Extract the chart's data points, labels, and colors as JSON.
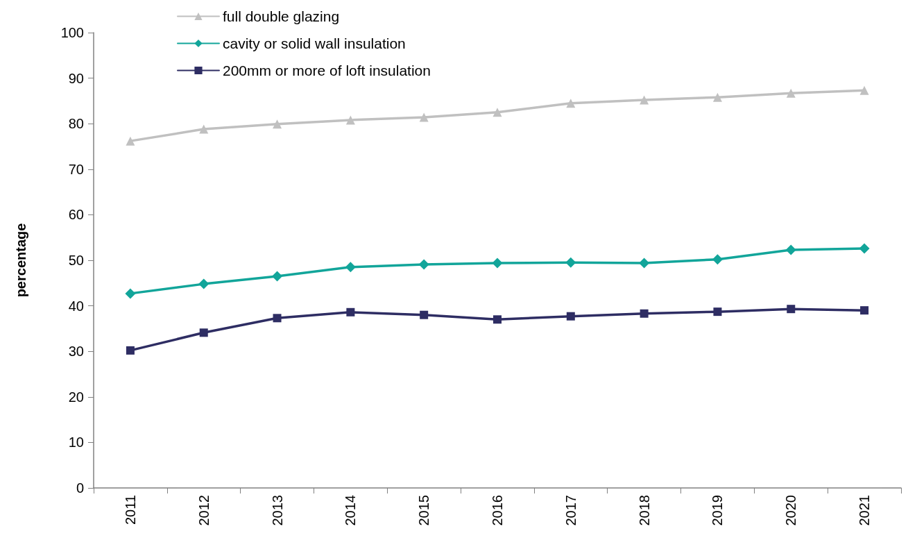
{
  "chart_data": {
    "type": "line",
    "ylabel": "percentage",
    "categories": [
      "2011",
      "2012",
      "2013",
      "2014",
      "2015",
      "2016",
      "2017",
      "2018",
      "2019",
      "2020",
      "2021"
    ],
    "series": [
      {
        "name": "full double glazing",
        "color": "#c0c0c0",
        "marker": "triangle",
        "values": [
          76.2,
          78.8,
          79.9,
          80.8,
          81.4,
          82.5,
          84.5,
          85.2,
          85.8,
          86.7,
          87.3
        ]
      },
      {
        "name": "cavity or solid wall insulation",
        "color": "#12a59a",
        "marker": "diamond",
        "values": [
          42.7,
          44.8,
          46.5,
          48.5,
          49.1,
          49.4,
          49.5,
          49.4,
          50.2,
          52.3,
          52.6
        ]
      },
      {
        "name": "200mm or more of loft insulation",
        "color": "#2e2d63",
        "marker": "square",
        "values": [
          30.2,
          34.1,
          37.3,
          38.6,
          38.0,
          37.0,
          37.7,
          38.3,
          38.7,
          39.3,
          39.0
        ]
      }
    ],
    "ylim": [
      0,
      100
    ],
    "yticks": [
      0,
      10,
      20,
      30,
      40,
      50,
      60,
      70,
      80,
      90,
      100
    ],
    "grid": false,
    "legend": "top left",
    "line_style": "solid"
  }
}
